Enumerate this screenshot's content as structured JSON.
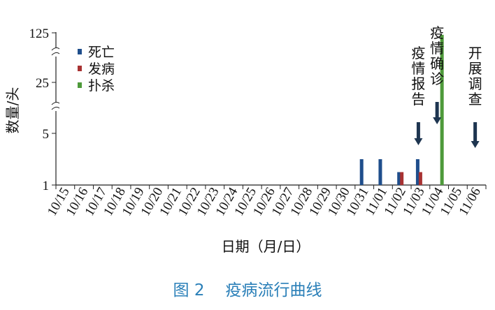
{
  "chart_data": {
    "type": "bar",
    "ylabel": "数量/头",
    "xlabel": "日期（月/日）",
    "y_scale": "broken",
    "y_ticks": [
      "1",
      "5",
      "25",
      "125"
    ],
    "ylim": [
      1,
      125
    ],
    "categories": [
      "10/15",
      "10/16",
      "10/17",
      "10/18",
      "10/19",
      "10/20",
      "10/21",
      "10/22",
      "10/23",
      "10/24",
      "10/25",
      "10/26",
      "10/27",
      "10/28",
      "10/29",
      "10/30",
      "10/31",
      "11/01",
      "11/02",
      "11/03",
      "11/04",
      "11/05",
      "11/06"
    ],
    "series": [
      {
        "name": "死亡",
        "color": "#1f4e8c",
        "values": [
          0,
          0,
          0,
          0,
          0,
          0,
          0,
          0,
          0,
          0,
          0,
          0,
          0,
          0,
          0,
          0,
          3,
          3,
          2,
          3,
          0,
          0,
          0
        ]
      },
      {
        "name": "发病",
        "color": "#a83232",
        "values": [
          0,
          0,
          0,
          0,
          0,
          0,
          0,
          0,
          0,
          0,
          0,
          0,
          0,
          0,
          0,
          0,
          0,
          0,
          2,
          2,
          0,
          0,
          0
        ]
      },
      {
        "name": "扑杀",
        "color": "#4e9a3a",
        "values": [
          0,
          0,
          0,
          0,
          0,
          0,
          0,
          0,
          0,
          0,
          0,
          0,
          0,
          0,
          0,
          0,
          0,
          0,
          0,
          0,
          121,
          0,
          0
        ]
      }
    ],
    "legend_position": "top-left",
    "annotations": [
      {
        "category": "11/03",
        "text": "疫情报告"
      },
      {
        "category": "11/04",
        "text": "疫情确诊"
      },
      {
        "category": "11/06",
        "text": "开展调查"
      }
    ]
  },
  "caption": {
    "label": "图 2",
    "title": "疫病流行曲线"
  }
}
